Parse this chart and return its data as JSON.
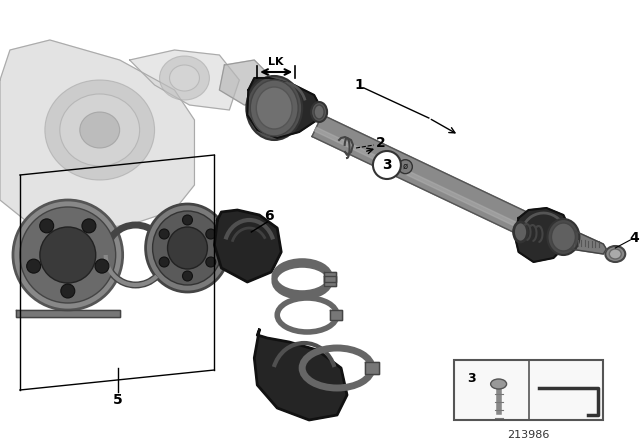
{
  "bg": "#ffffff",
  "part_number": "213986",
  "figsize": [
    6.4,
    4.48
  ],
  "dpi": 100,
  "shaft_color": "#7a7a7a",
  "shaft_dark": "#4a4a4a",
  "boot_color": "#2a2a2a",
  "boot_mid": "#3a3a3a",
  "metal_color": "#606060",
  "metal_light": "#909090",
  "clamp_color": "#686868",
  "housing_color": "#c0c0c0",
  "housing_light": "#d8d8d8",
  "label_fs": 10,
  "annot_fs": 8,
  "lk_fs": 8
}
